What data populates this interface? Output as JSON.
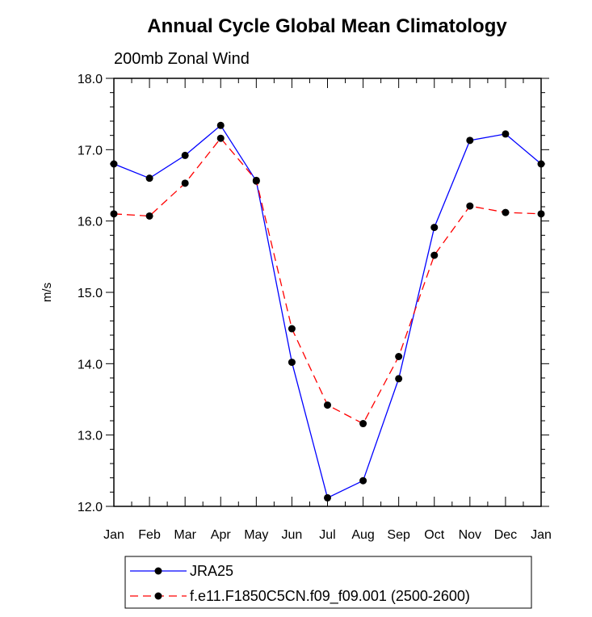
{
  "chart_data": {
    "type": "line",
    "title": "Annual Cycle Global Mean Climatology",
    "subtitle": "200mb Zonal Wind",
    "ylabel": "m/s",
    "xlabel": "",
    "categories": [
      "Jan",
      "Feb",
      "Mar",
      "Apr",
      "May",
      "Jun",
      "Jul",
      "Aug",
      "Sep",
      "Oct",
      "Nov",
      "Dec",
      "Jan"
    ],
    "ylim": [
      12.0,
      18.0
    ],
    "yticks": [
      "12.0",
      "13.0",
      "14.0",
      "15.0",
      "16.0",
      "17.0",
      "18.0"
    ],
    "series": [
      {
        "name": "JRA25",
        "color": "#0000ff",
        "dash": "solid",
        "values": [
          16.8,
          16.6,
          16.92,
          17.34,
          16.56,
          14.02,
          12.12,
          12.36,
          13.79,
          15.91,
          17.13,
          17.22,
          16.8
        ]
      },
      {
        "name": "f.e11.F1850C5CN.f09_f09.001 (2500-2600)",
        "color": "#ff0000",
        "dash": "dashed",
        "values": [
          16.1,
          16.07,
          16.53,
          17.16,
          16.57,
          14.49,
          13.42,
          13.16,
          14.1,
          15.52,
          16.21,
          16.12,
          16.1
        ]
      }
    ],
    "legend_position": "bottom",
    "grid": false
  }
}
